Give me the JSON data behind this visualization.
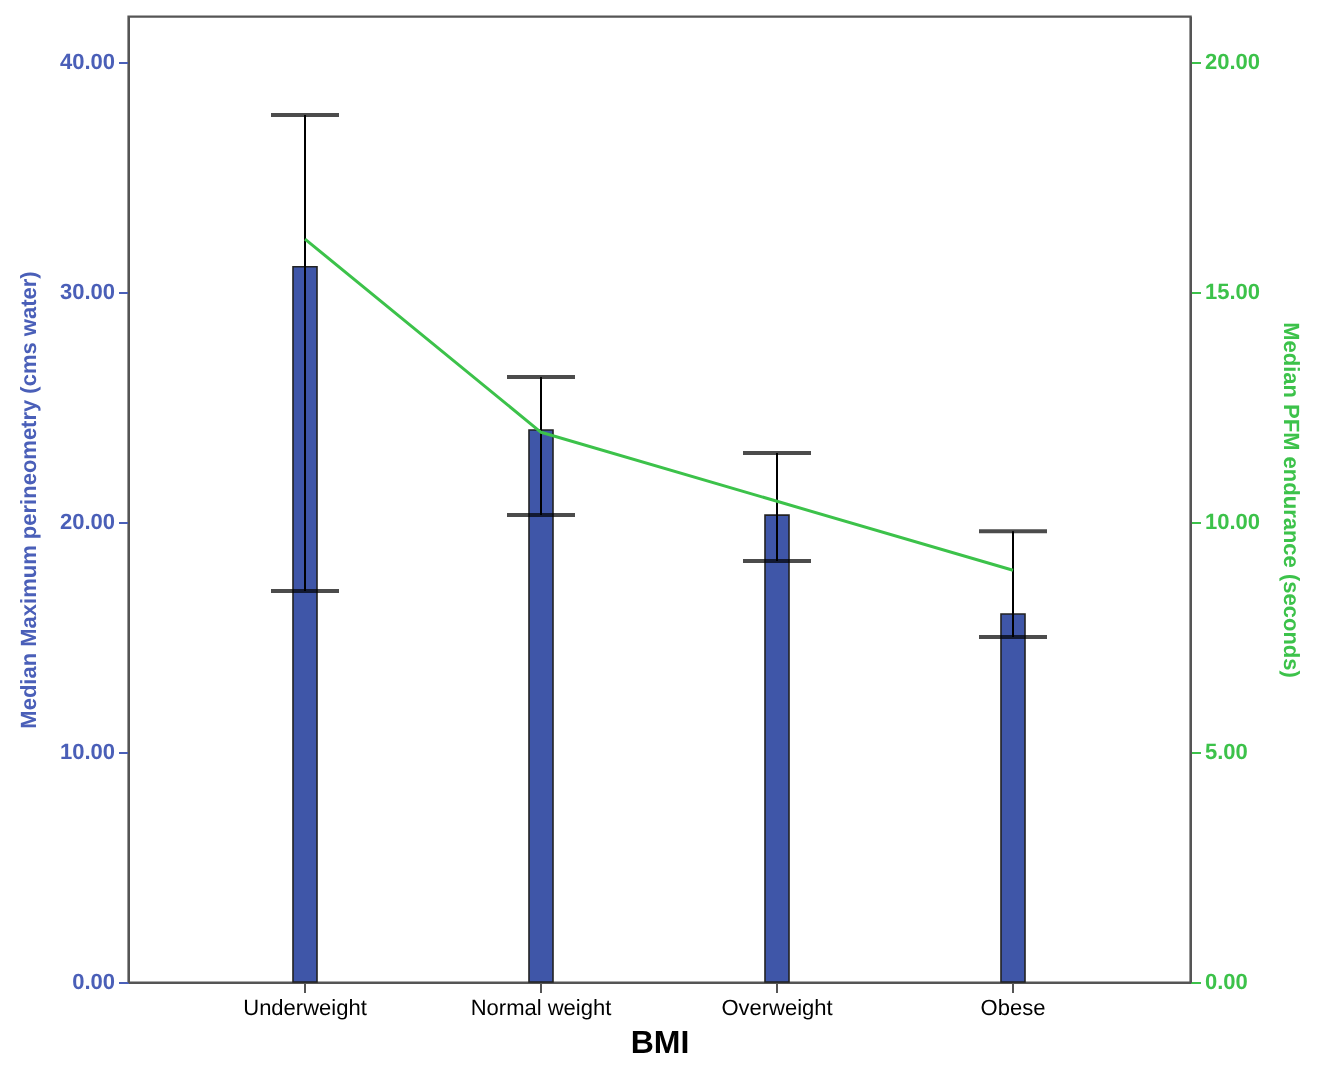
{
  "chart_data": {
    "type": "bar",
    "xlabel": "BMI",
    "ylabel": "Median Maximum perineometry (cms water)",
    "y2label": "Median PFM endurance (seconds)",
    "categories": [
      "Underweight",
      "Normal weight",
      "Overweight",
      "Obese"
    ],
    "series": [
      {
        "color": "#3f56a8",
        "values": [
          31.1,
          24.0,
          20.3,
          16.0
        ],
        "errors": [
          [
            17.0,
            37.7
          ],
          [
            20.3,
            26.3
          ],
          [
            18.3,
            23.0
          ],
          [
            15.0,
            19.6
          ]
        ]
      },
      {
        "type": "line",
        "axis": "y2",
        "color": "#3cc24a",
        "values": [
          16.15,
          11.95,
          10.45,
          8.95
        ]
      }
    ],
    "ylim": [
      0,
      42
    ],
    "yticks": [
      {
        "value": 0,
        "label": "0.00"
      },
      {
        "value": 10,
        "label": "10.00"
      },
      {
        "value": 20,
        "label": "20.00"
      },
      {
        "value": 30,
        "label": "30.00"
      },
      {
        "value": 40,
        "label": "40.00"
      }
    ],
    "y2lim": [
      0,
      21
    ],
    "y2ticks": [
      {
        "value": 0,
        "label": "0.00"
      },
      {
        "value": 5,
        "label": "5.00"
      },
      {
        "value": 10,
        "label": "10.00"
      },
      {
        "value": 15,
        "label": "15.00"
      },
      {
        "value": 20,
        "label": "20.00"
      }
    ],
    "grid": false,
    "marker": "none",
    "line_style": "solid"
  }
}
